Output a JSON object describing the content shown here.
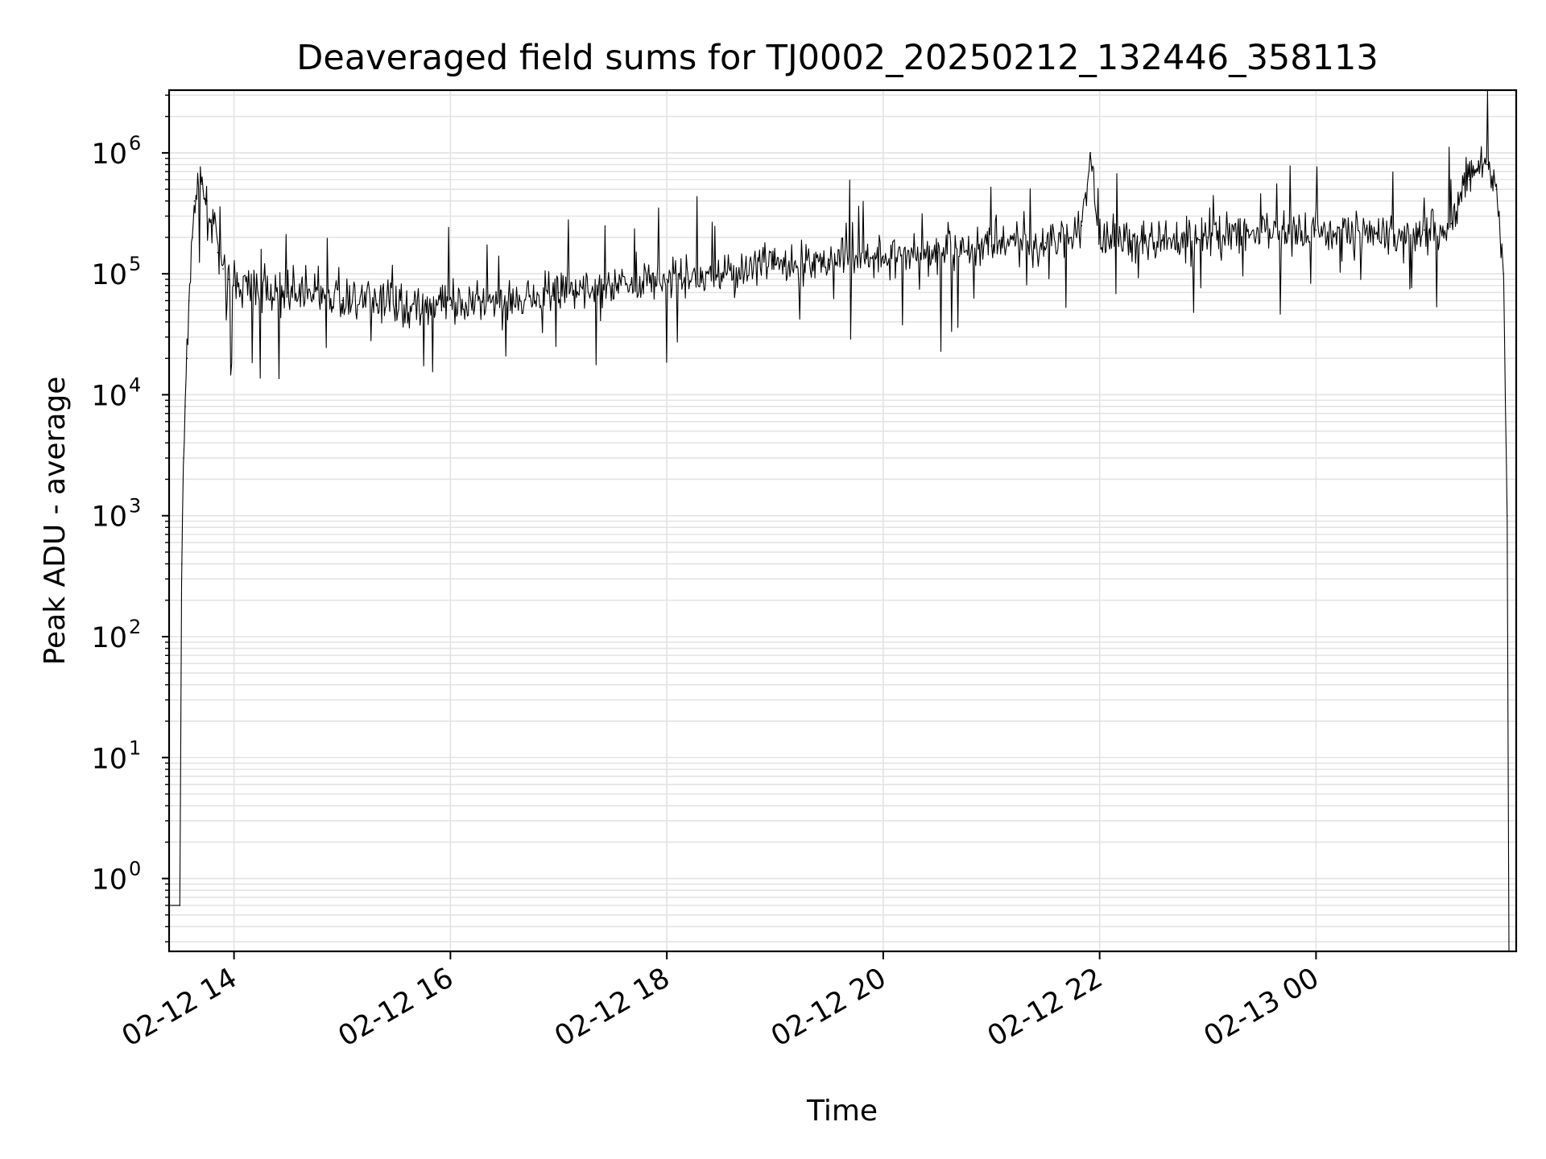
{
  "chart_data": {
    "type": "line",
    "title": "Deaveraged field sums for TJ0002_20250212_132446_358113",
    "xlabel": "Time",
    "ylabel": "Peak ADU - average",
    "yscale": "log",
    "grid": true,
    "legend": "none",
    "line_color": "#000000",
    "xlim": [
      "2025-02-12 13:24",
      "2025-02-13 01:51"
    ],
    "ylim": [
      0.25,
      3300000
    ],
    "x_ticks": [
      {
        "value": "2025-02-12 14:00",
        "label": "02-12 14"
      },
      {
        "value": "2025-02-12 16:00",
        "label": "02-12 16"
      },
      {
        "value": "2025-02-12 18:00",
        "label": "02-12 18"
      },
      {
        "value": "2025-02-12 20:00",
        "label": "02-12 20"
      },
      {
        "value": "2025-02-12 22:00",
        "label": "02-12 22"
      },
      {
        "value": "2025-02-13 00:00",
        "label": "02-13 00"
      }
    ],
    "y_ticks": [
      {
        "value": 1,
        "base": "10",
        "exp": "0"
      },
      {
        "value": 10,
        "base": "10",
        "exp": "1"
      },
      {
        "value": 100,
        "base": "10",
        "exp": "2"
      },
      {
        "value": 1000,
        "base": "10",
        "exp": "3"
      },
      {
        "value": 10000,
        "base": "10",
        "exp": "4"
      },
      {
        "value": 100000,
        "base": "10",
        "exp": "5"
      },
      {
        "value": 1000000,
        "base": "10",
        "exp": "6"
      }
    ],
    "series": [
      {
        "x": [
          "2025-02-12 13:24",
          "2025-02-12 13:30",
          "2025-02-12 13:31",
          "2025-02-12 13:32",
          "2025-02-12 13:33",
          "2025-02-12 13:34",
          "2025-02-12 13:35",
          "2025-02-12 13:37",
          "2025-02-12 13:38",
          "2025-02-12 13:40",
          "2025-02-12 13:42",
          "2025-02-12 13:45",
          "2025-02-12 13:48",
          "2025-02-12 13:51",
          "2025-02-12 13:54",
          "2025-02-12 13:57",
          "2025-02-12 14:00",
          "2025-02-12 14:15",
          "2025-02-12 14:30",
          "2025-02-12 15:00",
          "2025-02-12 15:30",
          "2025-02-12 16:00",
          "2025-02-12 16:30",
          "2025-02-12 17:00",
          "2025-02-12 17:30",
          "2025-02-12 18:00",
          "2025-02-12 18:30",
          "2025-02-12 19:00",
          "2025-02-12 19:30",
          "2025-02-12 20:00",
          "2025-02-12 20:30",
          "2025-02-12 21:00",
          "2025-02-12 21:30",
          "2025-02-12 21:50",
          "2025-02-12 21:55",
          "2025-02-12 22:00",
          "2025-02-12 22:30",
          "2025-02-12 23:00",
          "2025-02-12 23:30",
          "2025-02-13 00:00",
          "2025-02-13 00:30",
          "2025-02-13 01:00",
          "2025-02-13 01:15",
          "2025-02-13 01:25",
          "2025-02-13 01:30",
          "2025-02-13 01:35",
          "2025-02-13 01:40",
          "2025-02-13 01:44",
          "2025-02-13 01:46",
          "2025-02-13 01:47"
        ],
        "y": [
          0.6,
          0.6,
          400,
          3000,
          8000,
          20000,
          60000,
          200000,
          400000,
          600000,
          550000,
          400000,
          250000,
          150000,
          110000,
          90000,
          80000,
          75000,
          70000,
          60000,
          55000,
          55000,
          60000,
          70000,
          80000,
          90000,
          100000,
          120000,
          130000,
          140000,
          150000,
          170000,
          180000,
          250000,
          1000000,
          200000,
          180000,
          200000,
          220000,
          230000,
          220000,
          230000,
          260000,
          600000,
          850000,
          800000,
          500000,
          100000,
          1000,
          0.2
        ]
      }
    ]
  }
}
